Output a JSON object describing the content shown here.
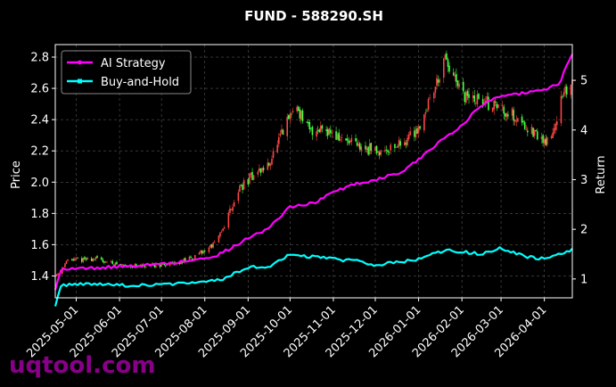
{
  "chart_data": {
    "type": "line",
    "title": "FUND - 588290.SH",
    "ylabel_left": "Price",
    "ylabel_right": "Return",
    "ylim_left": [
      1.26,
      2.88
    ],
    "ylim_right": [
      0.62,
      5.72
    ],
    "yticks_left": [
      "1.4",
      "1.6",
      "1.8",
      "2.0",
      "2.2",
      "2.4",
      "2.6",
      "2.8"
    ],
    "yticks_right": [
      "1",
      "2",
      "3",
      "4",
      "5"
    ],
    "xticks": [
      "2025-05-01",
      "2025-06-01",
      "2025-07-01",
      "2025-08-01",
      "2025-09-01",
      "2025-10-01",
      "2025-11-01",
      "2025-12-01",
      "2026-01-01",
      "2026-02-01",
      "2026-03-01",
      "2026-04-01"
    ],
    "x_range": [
      "2025-04-16",
      "2026-04-21"
    ],
    "grid": true,
    "legend_position": "top-left",
    "candlestick_price_path": [
      [
        "2025-04-16",
        1.4
      ],
      [
        "2025-04-25",
        1.5
      ],
      [
        "2025-05-15",
        1.51
      ],
      [
        "2025-06-01",
        1.47
      ],
      [
        "2025-06-20",
        1.46
      ],
      [
        "2025-07-10",
        1.48
      ],
      [
        "2025-07-25",
        1.52
      ],
      [
        "2025-08-10",
        1.62
      ],
      [
        "2025-08-25",
        1.95
      ],
      [
        "2025-09-05",
        2.05
      ],
      [
        "2025-09-15",
        2.1
      ],
      [
        "2025-09-25",
        2.3
      ],
      [
        "2025-10-05",
        2.5
      ],
      [
        "2025-10-15",
        2.32
      ],
      [
        "2025-10-25",
        2.36
      ],
      [
        "2025-11-05",
        2.28
      ],
      [
        "2025-11-20",
        2.22
      ],
      [
        "2025-12-05",
        2.2
      ],
      [
        "2025-12-20",
        2.25
      ],
      [
        "2026-01-01",
        2.35
      ],
      [
        "2026-01-10",
        2.55
      ],
      [
        "2026-01-20",
        2.78
      ],
      [
        "2026-02-01",
        2.55
      ],
      [
        "2026-02-15",
        2.52
      ],
      [
        "2026-03-01",
        2.48
      ],
      [
        "2026-03-15",
        2.4
      ],
      [
        "2026-03-25",
        2.3
      ],
      [
        "2026-04-05",
        2.25
      ],
      [
        "2026-04-12",
        2.5
      ],
      [
        "2026-04-21",
        2.65
      ]
    ],
    "series": [
      {
        "name": "AI Strategy",
        "color": "#ff00ff",
        "points": [
          [
            "2025-04-16",
            0.78
          ],
          [
            "2025-04-20",
            1.2
          ],
          [
            "2025-05-15",
            1.22
          ],
          [
            "2025-06-01",
            1.25
          ],
          [
            "2025-07-01",
            1.3
          ],
          [
            "2025-07-20",
            1.36
          ],
          [
            "2025-08-10",
            1.48
          ],
          [
            "2025-08-25",
            1.7
          ],
          [
            "2025-09-05",
            1.9
          ],
          [
            "2025-09-15",
            2.0
          ],
          [
            "2025-10-01",
            2.45
          ],
          [
            "2025-10-20",
            2.55
          ],
          [
            "2025-11-01",
            2.75
          ],
          [
            "2025-11-15",
            2.9
          ],
          [
            "2025-12-01",
            3.0
          ],
          [
            "2025-12-20",
            3.15
          ],
          [
            "2026-01-01",
            3.4
          ],
          [
            "2026-01-15",
            3.75
          ],
          [
            "2026-02-01",
            4.1
          ],
          [
            "2026-02-15",
            4.5
          ],
          [
            "2026-03-01",
            4.7
          ],
          [
            "2026-03-20",
            4.75
          ],
          [
            "2026-04-01",
            4.8
          ],
          [
            "2026-04-12",
            4.95
          ],
          [
            "2026-04-21",
            5.55
          ]
        ]
      },
      {
        "name": "Buy-and-Hold",
        "color": "#00ffff",
        "points": [
          [
            "2025-04-16",
            0.45
          ],
          [
            "2025-04-20",
            0.88
          ],
          [
            "2025-05-15",
            0.9
          ],
          [
            "2025-06-01",
            0.87
          ],
          [
            "2025-07-01",
            0.88
          ],
          [
            "2025-07-25",
            0.92
          ],
          [
            "2025-08-15",
            1.0
          ],
          [
            "2025-08-25",
            1.15
          ],
          [
            "2025-09-05",
            1.25
          ],
          [
            "2025-09-15",
            1.22
          ],
          [
            "2025-10-01",
            1.5
          ],
          [
            "2025-10-15",
            1.45
          ],
          [
            "2025-11-01",
            1.4
          ],
          [
            "2025-11-20",
            1.35
          ],
          [
            "2025-12-01",
            1.28
          ],
          [
            "2025-12-20",
            1.35
          ],
          [
            "2026-01-01",
            1.4
          ],
          [
            "2026-01-20",
            1.58
          ],
          [
            "2026-02-01",
            1.55
          ],
          [
            "2026-02-15",
            1.5
          ],
          [
            "2026-03-01",
            1.62
          ],
          [
            "2026-03-20",
            1.45
          ],
          [
            "2026-04-01",
            1.4
          ],
          [
            "2026-04-12",
            1.5
          ],
          [
            "2026-04-21",
            1.6
          ]
        ]
      }
    ]
  },
  "watermark": "uqtool.com"
}
